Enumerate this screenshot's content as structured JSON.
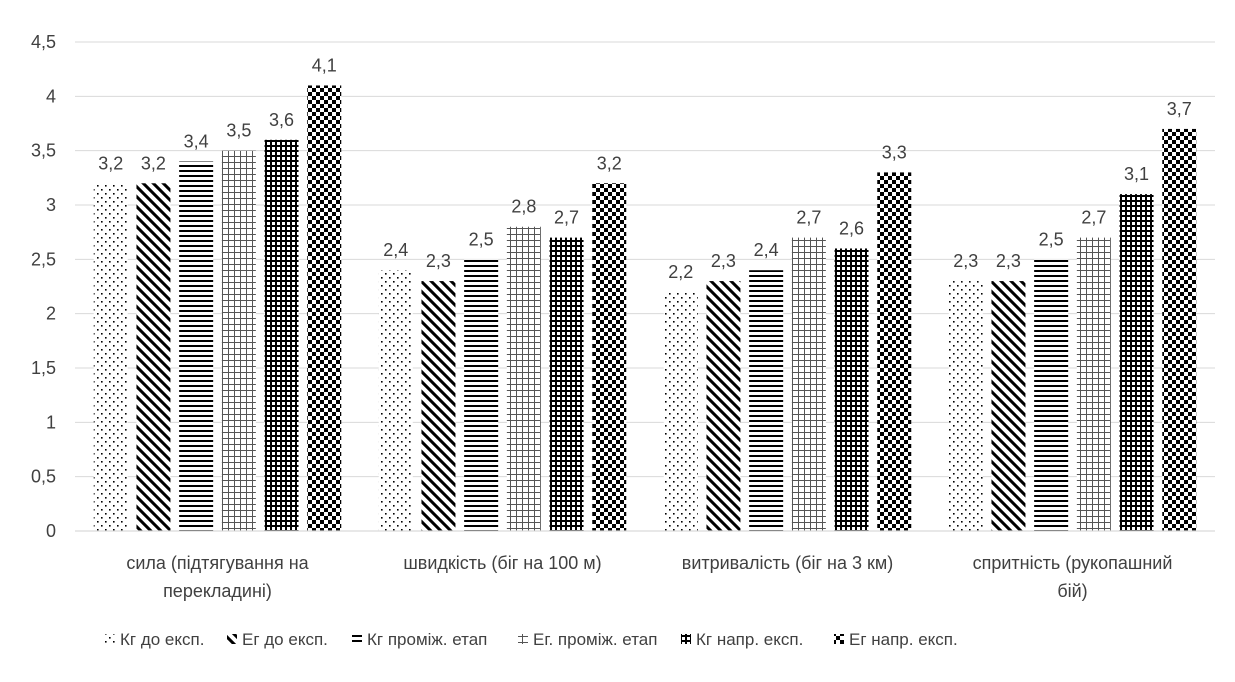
{
  "chart_data": {
    "type": "bar",
    "title": "",
    "xlabel": "",
    "ylabel": "",
    "ylim": [
      0,
      4.5
    ],
    "y_ticks": [
      "0",
      "0,5",
      "1",
      "1,5",
      "2",
      "2,5",
      "3",
      "3,5",
      "4",
      "4,5"
    ],
    "grid": true,
    "legend_position": "bottom",
    "categories": [
      [
        "сила (підтягування на",
        "перекладині)"
      ],
      [
        "швидкість (біг на 100 м)"
      ],
      [
        "витривалість (біг на 3 км)"
      ],
      [
        "спритність (рукопашний",
        "бій)"
      ]
    ],
    "series": [
      {
        "name": "Кг до експ.",
        "values": [
          3.2,
          2.4,
          2.2,
          2.3
        ],
        "labels": [
          "3,2",
          "2,4",
          "2,2",
          "2,3"
        ],
        "pattern": "dots-light"
      },
      {
        "name": "Ег до експ.",
        "values": [
          3.2,
          2.3,
          2.3,
          2.3
        ],
        "labels": [
          "3,2",
          "2,3",
          "2,3",
          "2,3"
        ],
        "pattern": "diagonal-stripes"
      },
      {
        "name": "Кг проміж. етап",
        "values": [
          3.4,
          2.5,
          2.4,
          2.5
        ],
        "labels": [
          "3,4",
          "2,5",
          "2,4",
          "2,5"
        ],
        "pattern": "horizontal-lines"
      },
      {
        "name": "Ег. проміж. етап",
        "values": [
          3.5,
          2.8,
          2.7,
          2.7
        ],
        "labels": [
          "3,5",
          "2,8",
          "2,7",
          "2,7"
        ],
        "pattern": "dotted-grid"
      },
      {
        "name": "Кг напр. експ.",
        "values": [
          3.6,
          2.7,
          2.6,
          3.1
        ],
        "labels": [
          "3,6",
          "2,7",
          "2,6",
          "3,1"
        ],
        "pattern": "grid"
      },
      {
        "name": "Ег напр. експ.",
        "values": [
          4.1,
          3.2,
          3.3,
          3.7
        ],
        "labels": [
          "4,1",
          "3,2",
          "3,3",
          "3,7"
        ],
        "pattern": "checkerboard"
      }
    ],
    "colors": {
      "ink": "#000000",
      "text": "#404040",
      "grid": "#d9d9d9"
    }
  }
}
